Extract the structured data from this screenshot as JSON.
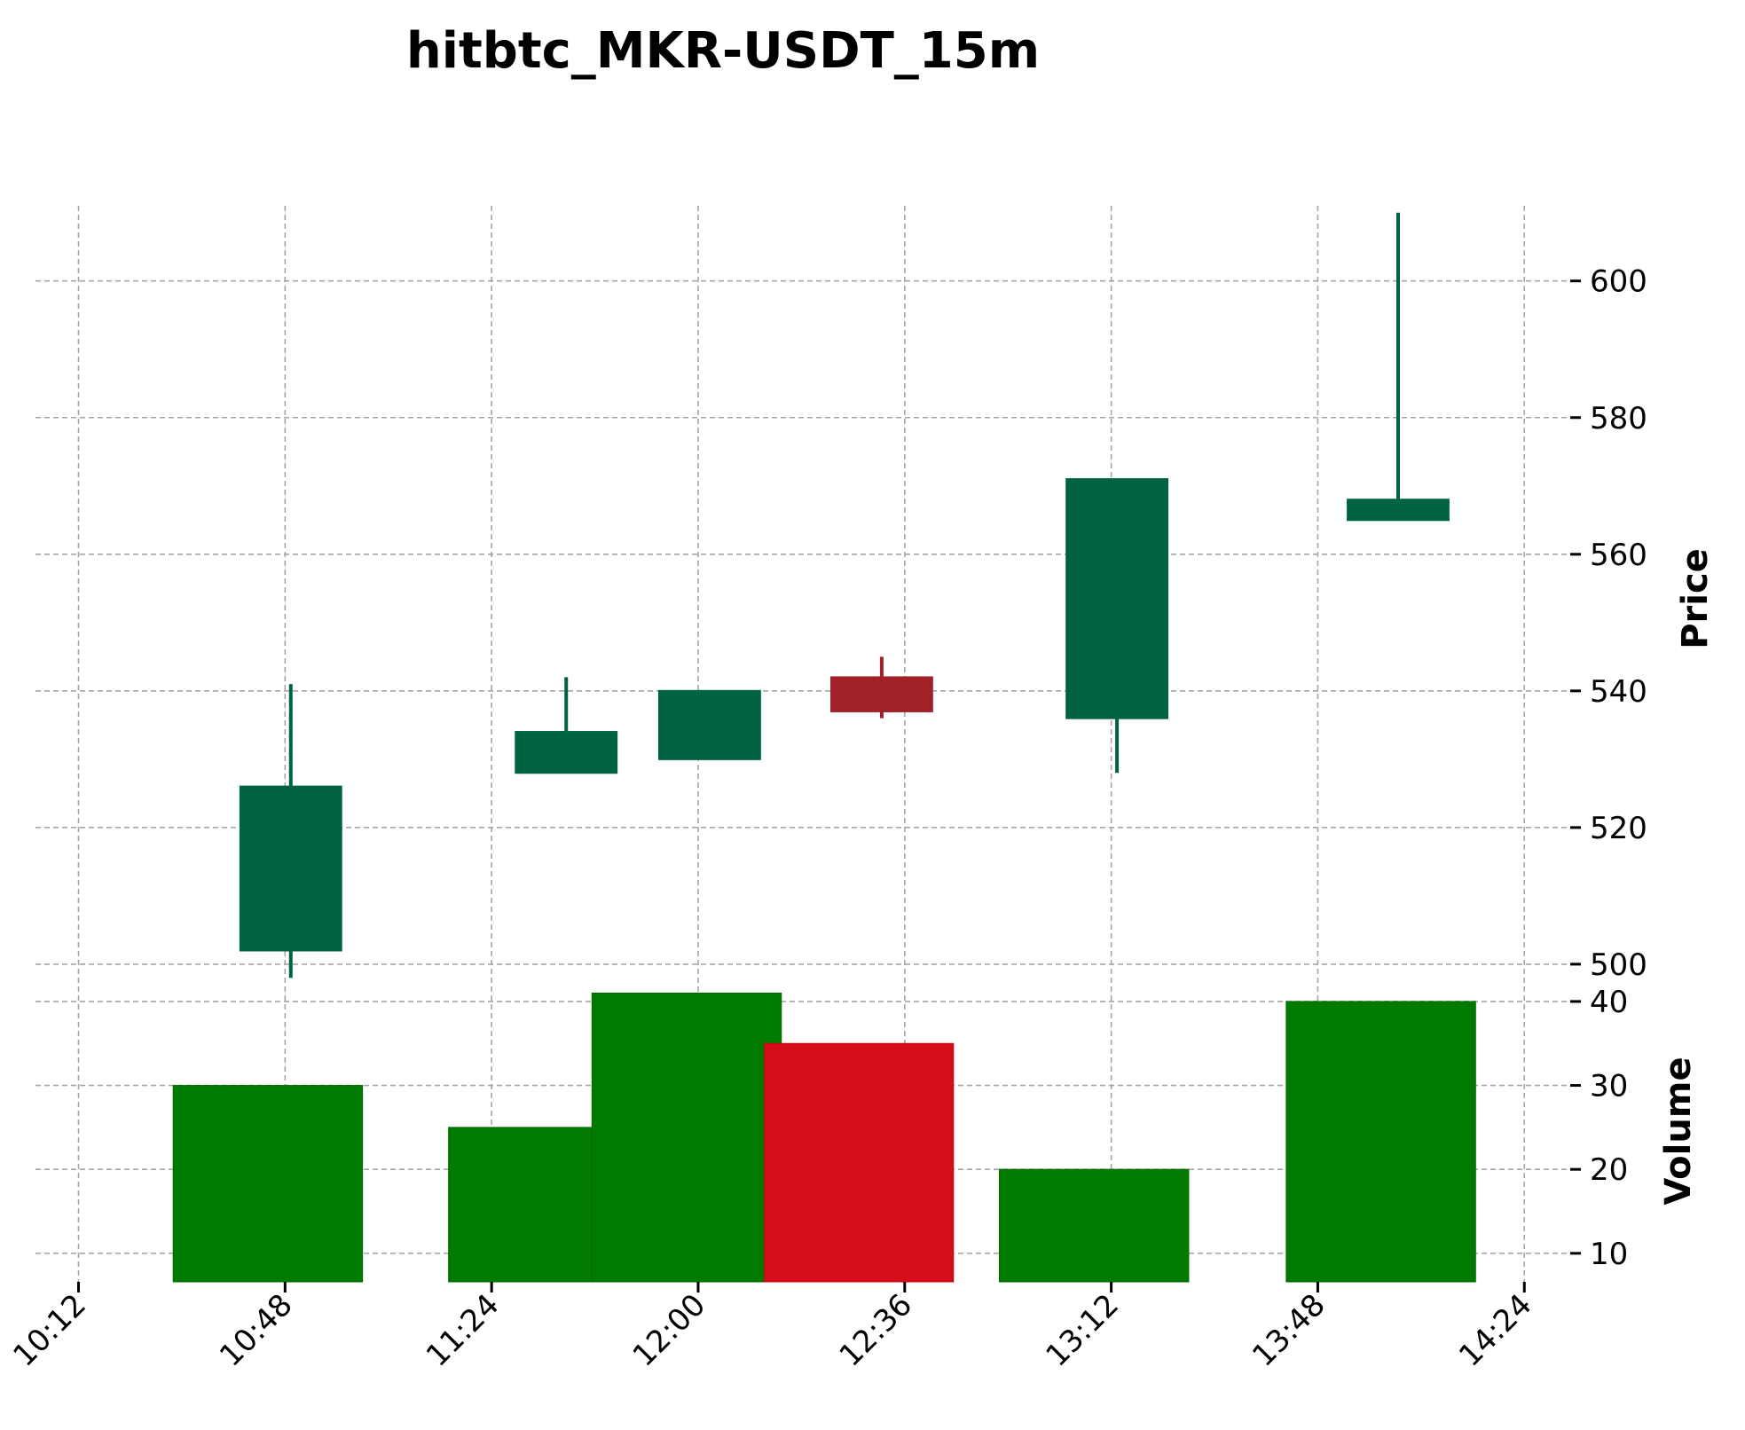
{
  "chart_data": {
    "type": "candlestick",
    "title": "hitbtc_MKR-USDT_15m",
    "x_tick_labels": [
      "10:12",
      "10:48",
      "11:24",
      "12:00",
      "12:36",
      "13:12",
      "13:48",
      "14:24"
    ],
    "x_tick_minutes": [
      612,
      648,
      684,
      720,
      756,
      792,
      828,
      864
    ],
    "xlim_minutes": [
      604.5,
      872
    ],
    "price": {
      "ylabel": "Price",
      "ylim": [
        497,
        611
      ],
      "ticks": [
        500,
        520,
        540,
        560,
        580,
        600
      ],
      "tick_labels": [
        "500",
        "520",
        "540",
        "560",
        "580",
        "600"
      ]
    },
    "volume": {
      "ylabel": "Volume",
      "ylim": [
        6.6,
        42
      ],
      "ticks": [
        10,
        20,
        30,
        40
      ],
      "tick_labels": [
        "10",
        "20",
        "30",
        "40"
      ]
    },
    "candles": [
      {
        "time": "10:49",
        "t": 649,
        "open": 502,
        "high": 541,
        "low": 498,
        "close": 526,
        "volume": 30,
        "vol_start": 628.5,
        "vol_end": 661.5
      },
      {
        "time": "11:37",
        "t": 697,
        "open": 528,
        "high": 542,
        "low": 528,
        "close": 534,
        "volume": 25,
        "vol_start": 676.5,
        "vol_end": 701.5
      },
      {
        "time": "12:02",
        "t": 722,
        "open": 530,
        "high": 540,
        "low": 530,
        "close": 540,
        "volume": 41,
        "vol_start": 701.5,
        "vol_end": 734.5
      },
      {
        "time": "12:32",
        "t": 752,
        "open": 542,
        "high": 545,
        "low": 536,
        "close": 537,
        "volume": 35,
        "vol_start": 731.5,
        "vol_end": 764.5
      },
      {
        "time": "13:13",
        "t": 793,
        "open": 536,
        "high": 571,
        "low": 528,
        "close": 571,
        "volume": 20,
        "vol_start": 772.5,
        "vol_end": 805.5
      },
      {
        "time": "14:02",
        "t": 842,
        "open": 565,
        "high": 610,
        "low": 565,
        "close": 568,
        "volume": 40,
        "vol_start": 822.5,
        "vol_end": 855.5
      }
    ],
    "colors": {
      "up_candle": "#006340",
      "down_candle": "#a02128",
      "up_volume": "#007a00",
      "down_volume": "#d50d18"
    },
    "grid": true
  }
}
